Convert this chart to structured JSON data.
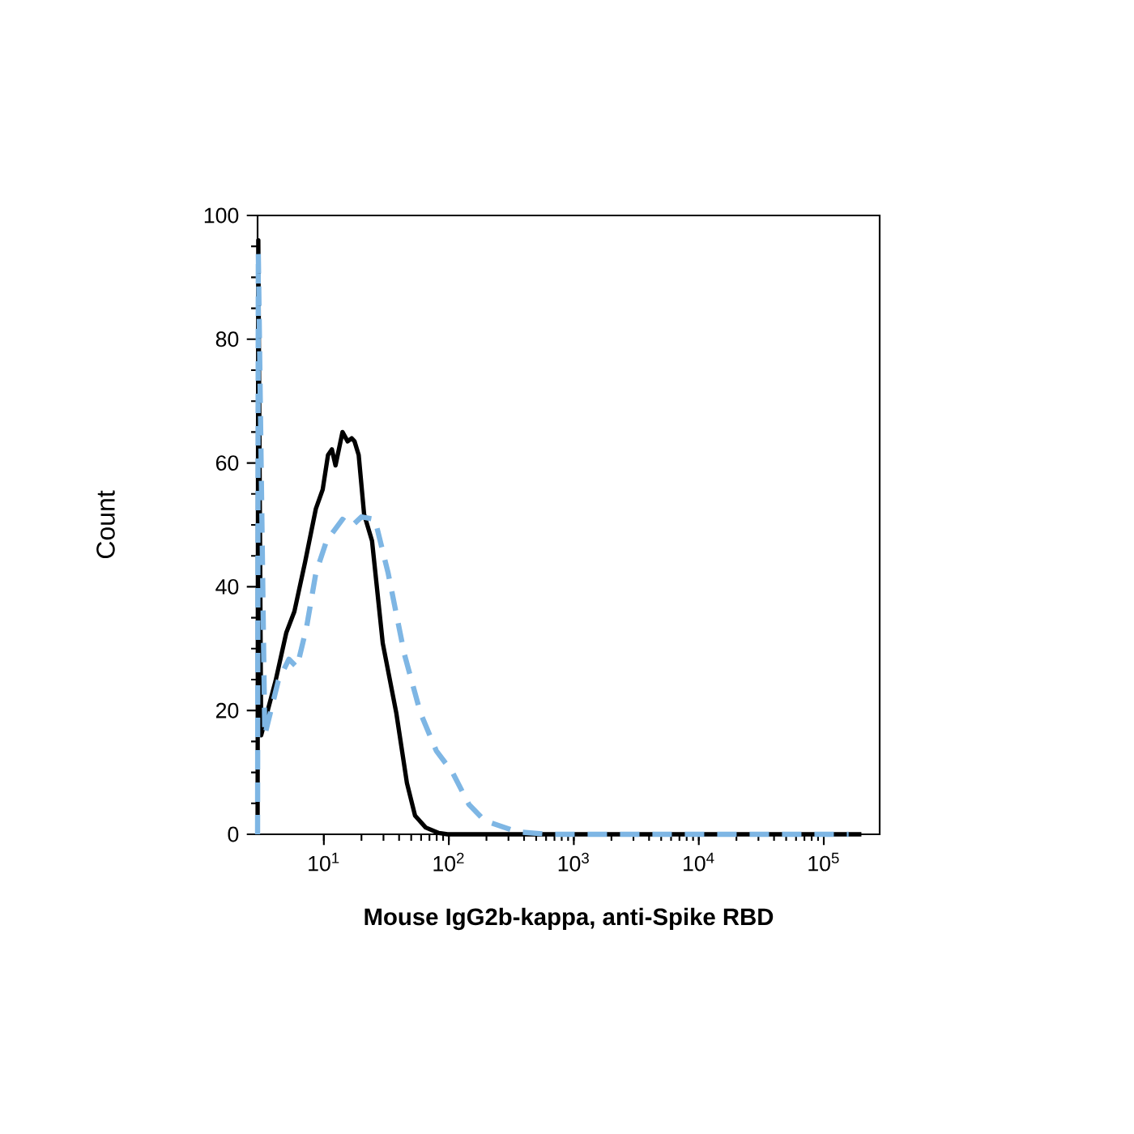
{
  "chart_data": {
    "type": "line",
    "xlabel": "Mouse IgG2b-kappa, anti-Spike RBD",
    "ylabel": "Count",
    "log": "x",
    "xlim": [
      2.95,
      280000
    ],
    "ylim": [
      0,
      100
    ],
    "xticks": [
      {
        "value": 10,
        "label": "10$^{1}$"
      },
      {
        "value": 100,
        "label": "10$^{2}$"
      },
      {
        "value": 1000,
        "label": "10$^{3}$"
      },
      {
        "value": 10000,
        "label": "10$^{4}$"
      },
      {
        "value": 100000,
        "label": "10$^{5}$"
      }
    ],
    "yticks": [
      0,
      20,
      40,
      60,
      80,
      100
    ],
    "marker": "none",
    "series": [
      {
        "color": "#000000",
        "line_style": "solid",
        "x": [
          2.95,
          2.99,
          3.15,
          4.11,
          5.01,
          5.81,
          7.08,
          8.63,
          9.79,
          10.8,
          11.6,
          12.4,
          14.1,
          15.5,
          16.7,
          17.6,
          19.0,
          21.0,
          24.3,
          29.6,
          38.0,
          46.2,
          53.7,
          65.3,
          83.2,
          97.7,
          200000
        ],
        "values": [
          0,
          96,
          16,
          24.8,
          32.6,
          36,
          44,
          52.6,
          55.7,
          61.3,
          62.2,
          59.6,
          65,
          63.5,
          64,
          63.5,
          61.3,
          51.7,
          47.4,
          30.9,
          19.6,
          8.3,
          3,
          1.1,
          0.2,
          0,
          0
        ]
      },
      {
        "color": "#7eb6e4",
        "line_style": "dashed",
        "x": [
          2.95,
          2.99,
          3.37,
          4.32,
          5.25,
          6.1,
          7.28,
          8.63,
          10.5,
          14.1,
          16.7,
          20.0,
          25.6,
          32.7,
          44.1,
          59.3,
          79.4,
          107,
          145,
          194,
          351,
          631,
          158000
        ],
        "values": [
          0,
          94,
          16,
          24.8,
          28.3,
          27,
          33.5,
          42.2,
          47.4,
          50.9,
          49.8,
          51.3,
          50.9,
          42.2,
          29.1,
          19.6,
          13.5,
          10,
          4.8,
          2.2,
          0.4,
          0,
          0
        ]
      }
    ]
  }
}
